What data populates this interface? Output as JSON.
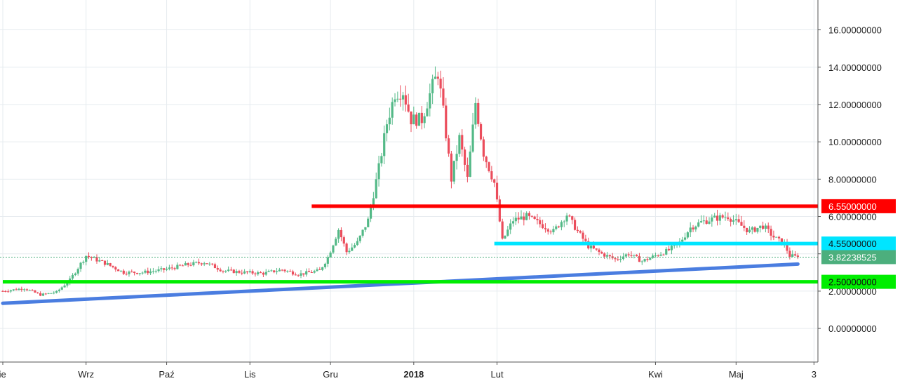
{
  "chart_data": {
    "type": "candlestick",
    "y_axis": {
      "ticks": [
        "0.00000000",
        "2.00000000",
        "4.00000000",
        "6.00000000",
        "8.00000000",
        "10.00000000",
        "12.00000000",
        "14.00000000",
        "16.00000000"
      ],
      "tick_values": [
        0,
        2,
        4,
        6,
        8,
        10,
        12,
        14,
        16
      ],
      "range": [
        -1.8,
        17.6
      ],
      "position": "right"
    },
    "x_axis": {
      "ticks": [
        {
          "label": "Sie",
          "day": 0,
          "bold": false
        },
        {
          "label": "Wrz",
          "day": 31,
          "bold": false
        },
        {
          "label": "Paź",
          "day": 61,
          "bold": false
        },
        {
          "label": "Lis",
          "day": 92,
          "bold": false
        },
        {
          "label": "Gru",
          "day": 122,
          "bold": false
        },
        {
          "label": "2018",
          "day": 153,
          "bold": true
        },
        {
          "label": "Lut",
          "day": 184,
          "bold": false
        },
        {
          "label": "Kwi",
          "day": 243,
          "bold": false
        },
        {
          "label": "Maj",
          "day": 273,
          "bold": false
        },
        {
          "label": "3",
          "day": 302,
          "bold": false
        }
      ],
      "range": [
        0,
        304
      ]
    },
    "grid": true,
    "price_path": [
      [
        0,
        2.0
      ],
      [
        8,
        2.15
      ],
      [
        14,
        1.8
      ],
      [
        20,
        1.95
      ],
      [
        25,
        2.6
      ],
      [
        31,
        3.9
      ],
      [
        38,
        3.5
      ],
      [
        45,
        3.0
      ],
      [
        52,
        3.0
      ],
      [
        60,
        3.15
      ],
      [
        68,
        3.4
      ],
      [
        75,
        3.55
      ],
      [
        82,
        3.1
      ],
      [
        90,
        3.0
      ],
      [
        97,
        2.95
      ],
      [
        104,
        3.15
      ],
      [
        110,
        2.9
      ],
      [
        118,
        3.1
      ],
      [
        121,
        3.8
      ],
      [
        125,
        5.3
      ],
      [
        128,
        4.1
      ],
      [
        132,
        4.6
      ],
      [
        136,
        5.8
      ],
      [
        140,
        8.6
      ],
      [
        143,
        11.0
      ],
      [
        146,
        12.6
      ],
      [
        149,
        12.7
      ],
      [
        152,
        11.2
      ],
      [
        156,
        11.2
      ],
      [
        160,
        13.0
      ],
      [
        162,
        13.7
      ],
      [
        164,
        11.6
      ],
      [
        167,
        8.0
      ],
      [
        170,
        10.2
      ],
      [
        173,
        8.0
      ],
      [
        176,
        12.1
      ],
      [
        179,
        9.4
      ],
      [
        183,
        7.8
      ],
      [
        186,
        4.7
      ],
      [
        190,
        5.8
      ],
      [
        195,
        6.0
      ],
      [
        200,
        5.6
      ],
      [
        205,
        5.2
      ],
      [
        210,
        6.1
      ],
      [
        214,
        5.2
      ],
      [
        218,
        4.4
      ],
      [
        223,
        4.0
      ],
      [
        228,
        3.7
      ],
      [
        233,
        4.0
      ],
      [
        238,
        3.6
      ],
      [
        243,
        3.9
      ],
      [
        248,
        4.2
      ],
      [
        252,
        4.6
      ],
      [
        256,
        5.4
      ],
      [
        260,
        5.7
      ],
      [
        265,
        5.9
      ],
      [
        270,
        6.0
      ],
      [
        274,
        5.6
      ],
      [
        278,
        5.2
      ],
      [
        283,
        5.5
      ],
      [
        287,
        4.9
      ],
      [
        291,
        4.5
      ],
      [
        293,
        3.9
      ],
      [
        296,
        3.82
      ]
    ],
    "levels": [
      {
        "value": 6.55,
        "label": "6.55000000",
        "color": "#ff0000",
        "start_day": 115
      },
      {
        "value": 4.55,
        "label": "4.55000000",
        "color": "#00e5ff",
        "start_day": 183
      },
      {
        "value": 2.5,
        "label": "2.50000000",
        "color": "#00ee00",
        "start_day": 0
      }
    ],
    "trendline": {
      "color": "#4a7de0",
      "start": [
        0,
        1.35
      ],
      "end": [
        296,
        3.45
      ]
    },
    "last_price": {
      "value": 3.82238525,
      "label": "3.82238525",
      "color": "#4caf7d"
    },
    "up_color": "#53b987",
    "down_color": "#eb4d5c"
  }
}
